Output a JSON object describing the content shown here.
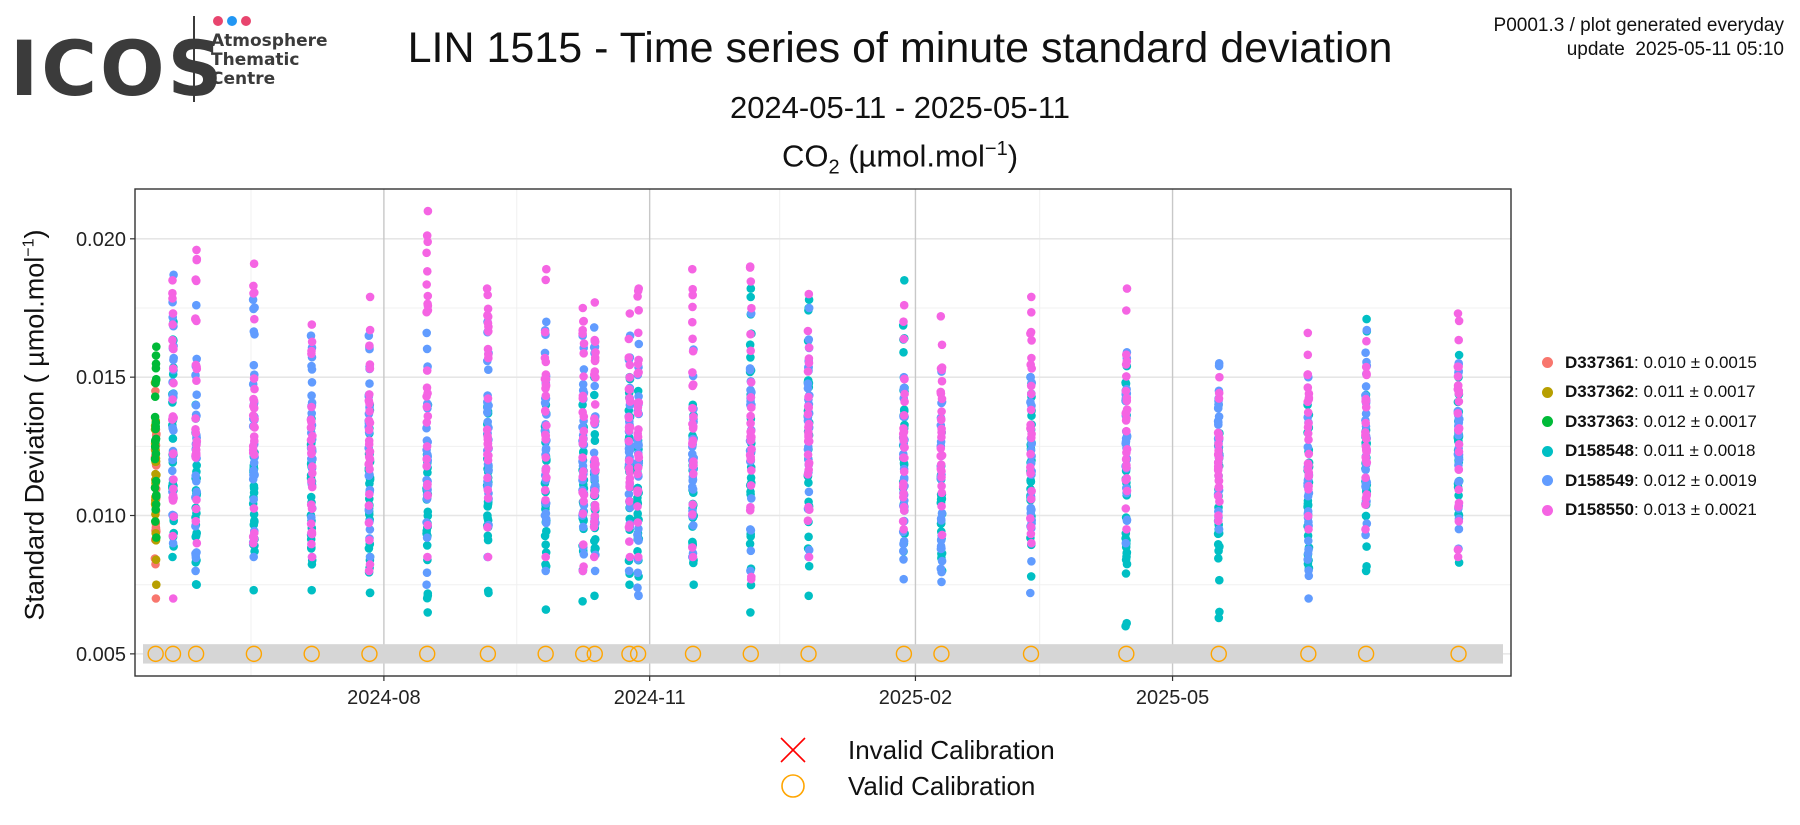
{
  "header": {
    "logo_text": "ICOS",
    "logo_sub": [
      "Atmosphere",
      "Thematic",
      "Centre"
    ],
    "logo_dot_colors": [
      "#e8456e",
      "#2196f3",
      "#e8456e"
    ],
    "title": "LIN 1515 - Time series of minute standard deviation",
    "subtitle": "2024-05-11 - 2025-05-11",
    "unit_main": "CO",
    "unit_sub": "2",
    "unit_rest": " (µmol.mol",
    "unit_sup": "−1",
    "unit_close": ")",
    "meta_line1": "P0001.3 / plot generated everyday",
    "meta_line2": "update  2025-05-11 05:10"
  },
  "chart_data": {
    "type": "scatter",
    "title": "LIN 1515 - Time series of minute standard deviation",
    "ylabel_main": "Standard Deviation ( µmol.mol",
    "ylabel_sup": "−1",
    "ylabel_close": ")",
    "xlim": [
      "2024-05-11",
      "2025-05-11"
    ],
    "ylim": [
      0.0042,
      0.0218
    ],
    "xticks": [
      {
        "date": "2024-08-01",
        "label": "2024-08"
      },
      {
        "date": "2024-11-01",
        "label": "2024-11"
      },
      {
        "date": "2025-02-01",
        "label": "2025-02"
      },
      {
        "date": "2025-05-01",
        "label": "2025-05"
      }
    ],
    "xminor": [
      "2024-06-16",
      "2024-09-16",
      "2024-12-16",
      "2025-03-16"
    ],
    "yticks": [
      0.005,
      0.01,
      0.015,
      0.02
    ],
    "yminor": [
      0.0075,
      0.0125,
      0.0175
    ],
    "grid": true,
    "legend_position": "right",
    "series": [
      {
        "id": "D337361",
        "stats": ": 0.010 ± 0.0015",
        "color": "#f8766d"
      },
      {
        "id": "D337362",
        "stats": ": 0.011 ± 0.0017",
        "color": "#b79f00"
      },
      {
        "id": "D337363",
        "stats": ": 0.012 ± 0.0017",
        "color": "#00ba38"
      },
      {
        "id": "D158548",
        "stats": ": 0.011 ± 0.0018",
        "color": "#00bfc4"
      },
      {
        "id": "D158549",
        "stats": ": 0.012 ± 0.0019",
        "color": "#619cff"
      },
      {
        "id": "D158550",
        "stats": ": 0.013 ± 0.0021",
        "color": "#f564e3"
      }
    ],
    "sessions": [
      {
        "date": "2024-05-14",
        "ranges": {
          "D337361": [
            0.007,
            0.0145
          ],
          "D337362": [
            0.0075,
            0.0148
          ],
          "D337363": [
            0.0092,
            0.0161
          ]
        }
      },
      {
        "date": "2024-05-20",
        "ranges": {
          "D158548": [
            0.0085,
            0.017
          ],
          "D158549": [
            0.009,
            0.0187
          ],
          "D158550": [
            0.007,
            0.0185
          ]
        }
      },
      {
        "date": "2024-05-28",
        "ranges": {
          "D158548": [
            0.0075,
            0.014
          ],
          "D158549": [
            0.008,
            0.0176
          ],
          "D158550": [
            0.009,
            0.0196
          ]
        }
      },
      {
        "date": "2024-06-17",
        "ranges": {
          "D158548": [
            0.0073,
            0.014
          ],
          "D158549": [
            0.0085,
            0.0178
          ],
          "D158550": [
            0.009,
            0.0191
          ]
        }
      },
      {
        "date": "2024-07-07",
        "ranges": {
          "D158548": [
            0.0073,
            0.0135
          ],
          "D158549": [
            0.0085,
            0.0165
          ],
          "D158550": [
            0.0085,
            0.0169
          ]
        }
      },
      {
        "date": "2024-07-27",
        "ranges": {
          "D158548": [
            0.0072,
            0.014
          ],
          "D158549": [
            0.0085,
            0.0165
          ],
          "D158550": [
            0.008,
            0.0179
          ]
        }
      },
      {
        "date": "2024-08-16",
        "ranges": {
          "D158548": [
            0.0065,
            0.014
          ],
          "D158549": [
            0.0075,
            0.0166
          ],
          "D158550": [
            0.0085,
            0.021
          ]
        }
      },
      {
        "date": "2024-09-06",
        "ranges": {
          "D158548": [
            0.0072,
            0.014
          ],
          "D158549": [
            0.0085,
            0.017
          ],
          "D158550": [
            0.0085,
            0.0182
          ]
        }
      },
      {
        "date": "2024-09-26",
        "ranges": {
          "D158548": [
            0.0066,
            0.014
          ],
          "D158549": [
            0.008,
            0.017
          ],
          "D158550": [
            0.0085,
            0.0189
          ]
        }
      },
      {
        "date": "2024-10-09",
        "ranges": {
          "D158548": [
            0.0069,
            0.014
          ],
          "D158549": [
            0.008,
            0.0165
          ],
          "D158550": [
            0.008,
            0.0175
          ]
        }
      },
      {
        "date": "2024-10-13",
        "ranges": {
          "D158548": [
            0.0071,
            0.015
          ],
          "D158549": [
            0.008,
            0.0168
          ],
          "D158550": [
            0.0085,
            0.0177
          ]
        }
      },
      {
        "date": "2024-10-25",
        "ranges": {
          "D158548": [
            0.0075,
            0.015
          ],
          "D158549": [
            0.008,
            0.0165
          ],
          "D158550": [
            0.0085,
            0.0173
          ]
        }
      },
      {
        "date": "2024-10-28",
        "ranges": {
          "D158548": [
            0.0078,
            0.0145
          ],
          "D158549": [
            0.0071,
            0.0162
          ],
          "D158550": [
            0.0085,
            0.0182
          ]
        }
      },
      {
        "date": "2024-11-16",
        "ranges": {
          "D158548": [
            0.0075,
            0.014
          ],
          "D158549": [
            0.0085,
            0.016
          ],
          "D158550": [
            0.0085,
            0.0189
          ]
        }
      },
      {
        "date": "2024-12-06",
        "ranges": {
          "D158548": [
            0.0065,
            0.0182
          ],
          "D158549": [
            0.008,
            0.0173
          ],
          "D158550": [
            0.0077,
            0.019
          ]
        }
      },
      {
        "date": "2024-12-26",
        "ranges": {
          "D158548": [
            0.0071,
            0.0178
          ],
          "D158549": [
            0.0085,
            0.0175
          ],
          "D158550": [
            0.0085,
            0.018
          ]
        }
      },
      {
        "date": "2025-01-28",
        "ranges": {
          "D158548": [
            0.0087,
            0.0185
          ],
          "D158549": [
            0.0077,
            0.015
          ],
          "D158550": [
            0.0095,
            0.0176
          ]
        }
      },
      {
        "date": "2025-02-10",
        "ranges": {
          "D158548": [
            0.008,
            0.013
          ],
          "D158549": [
            0.0076,
            0.0152
          ],
          "D158550": [
            0.0093,
            0.0172
          ]
        }
      },
      {
        "date": "2025-03-13",
        "ranges": {
          "D158548": [
            0.0078,
            0.015
          ],
          "D158549": [
            0.0072,
            0.015
          ],
          "D158550": [
            0.009,
            0.0179
          ]
        }
      },
      {
        "date": "2025-04-15",
        "ranges": {
          "D158548": [
            0.006,
            0.0154
          ],
          "D158549": [
            0.009,
            0.0159
          ],
          "D158550": [
            0.0095,
            0.0182
          ]
        }
      },
      {
        "date": "2025-05-17",
        "ranges": {
          "D158548": [
            0.0063,
            0.014
          ],
          "D158549": [
            0.0095,
            0.0155
          ],
          "D158550": [
            0.0098,
            0.015
          ]
        }
      },
      {
        "date": "2025-06-17",
        "ranges": {
          "D158548": [
            0.0081,
            0.014
          ],
          "D158549": [
            0.007,
            0.015
          ],
          "D158550": [
            0.0095,
            0.0166
          ]
        }
      },
      {
        "date": "2025-07-07",
        "ranges": {
          "D158548": [
            0.008,
            0.0171
          ],
          "D158549": [
            0.0093,
            0.0167
          ],
          "D158550": [
            0.0095,
            0.0163
          ]
        }
      },
      {
        "date": "2025-08-08",
        "ranges": {
          "D158548": [
            0.0083,
            0.0158
          ],
          "D158549": [
            0.0088,
            0.0155
          ],
          "D158550": [
            0.0085,
            0.0173
          ]
        }
      }
    ],
    "calibrations": {
      "y": 0.005,
      "status": "valid",
      "dates": [
        "2024-05-14",
        "2024-05-20",
        "2024-05-28",
        "2024-06-17",
        "2024-07-07",
        "2024-07-27",
        "2024-08-16",
        "2024-09-06",
        "2024-09-26",
        "2024-10-09",
        "2024-10-13",
        "2024-10-25",
        "2024-10-28",
        "2024-11-16",
        "2024-12-06",
        "2024-12-26",
        "2025-01-28",
        "2025-02-10",
        "2025-03-13",
        "2025-04-15",
        "2025-05-17",
        "2025-06-17",
        "2025-07-07",
        "2025-08-08"
      ]
    },
    "cal_band": [
      0.00465,
      0.00535
    ]
  },
  "legend_cal": {
    "invalid_label": "Invalid Calibration",
    "valid_label": "Valid Calibration",
    "invalid_color": "#ff0000",
    "valid_color": "#ffa500"
  }
}
